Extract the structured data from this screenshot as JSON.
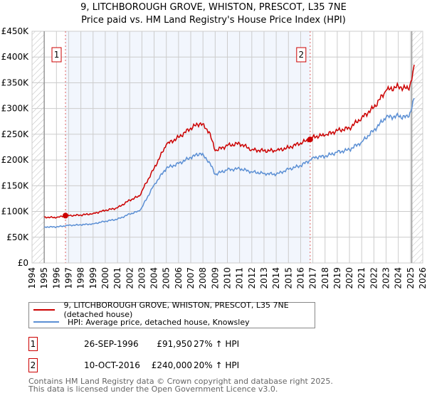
{
  "chart_data": {
    "type": "line",
    "title": "9, LITCHBOROUGH GROVE, WHISTON, PRESCOT, L35 7NE",
    "subtitle": "Price paid vs. HM Land Registry's House Price Index (HPI)",
    "xlim": [
      1994,
      2026
    ],
    "ylim": [
      0,
      450000
    ],
    "x_ticks": [
      "1994",
      "1995",
      "1996",
      "1997",
      "1998",
      "1999",
      "2000",
      "2001",
      "2002",
      "2003",
      "2004",
      "2005",
      "2006",
      "2007",
      "2008",
      "2009",
      "2010",
      "2011",
      "2012",
      "2013",
      "2014",
      "2015",
      "2016",
      "2017",
      "2018",
      "2019",
      "2020",
      "2021",
      "2022",
      "2023",
      "2024",
      "2025",
      "2026"
    ],
    "y_ticks": [
      {
        "value": 0,
        "label": "£0"
      },
      {
        "value": 50000,
        "label": "£50K"
      },
      {
        "value": 100000,
        "label": "£100K"
      },
      {
        "value": 150000,
        "label": "£150K"
      },
      {
        "value": 200000,
        "label": "£200K"
      },
      {
        "value": 250000,
        "label": "£250K"
      },
      {
        "value": 300000,
        "label": "£300K"
      },
      {
        "value": 350000,
        "label": "£350K"
      },
      {
        "value": 400000,
        "label": "£400K"
      },
      {
        "value": 450000,
        "label": "£450K"
      }
    ],
    "grid": true,
    "series": [
      {
        "name": "9, LITCHBOROUGH GROVE, WHISTON, PRESCOT, L35 7NE (detached house)",
        "color": "#cc0000",
        "x": [
          1995,
          1996,
          1996.74,
          1997,
          1998,
          1999,
          2000,
          2001,
          2002,
          2002.8,
          2003,
          2004,
          2005,
          2006,
          2007,
          2007.8,
          2008.5,
          2009,
          2010,
          2011,
          2012,
          2013,
          2014,
          2015,
          2016,
          2016.78,
          2017,
          2018,
          2019,
          2020,
          2021,
          2022,
          2023,
          2024,
          2024.8,
          2025.1,
          2025.3
        ],
        "y": [
          89000,
          88000,
          91950,
          92000,
          93000,
          96000,
          102000,
          107000,
          122000,
          130000,
          140000,
          184000,
          230000,
          244000,
          262000,
          272000,
          255000,
          218000,
          228000,
          232000,
          220000,
          218000,
          218000,
          224000,
          233000,
          240000,
          245000,
          248000,
          257000,
          262000,
          282000,
          302000,
          335000,
          343000,
          338000,
          355000,
          385000
        ]
      },
      {
        "name": "HPI: Average price, detached house, Knowsley",
        "color": "#5b8fd4",
        "x": [
          1995,
          1996,
          1996.74,
          1997,
          1998,
          1999,
          2000,
          2001,
          2002,
          2002.8,
          2003,
          2004,
          2005,
          2006,
          2007,
          2007.8,
          2008.5,
          2009,
          2010,
          2011,
          2012,
          2013,
          2014,
          2015,
          2016,
          2016.78,
          2017,
          2018,
          2019,
          2020,
          2021,
          2022,
          2023,
          2024,
          2024.8,
          2025.1,
          2025.3
        ],
        "y": [
          70000,
          70000,
          72000,
          73000,
          74000,
          76000,
          81000,
          85000,
          95000,
          101000,
          108000,
          152000,
          184000,
          193000,
          205000,
          213000,
          197000,
          172000,
          181000,
          183000,
          177000,
          174000,
          172000,
          182000,
          189000,
          200000,
          205000,
          207000,
          215000,
          220000,
          235000,
          258000,
          283000,
          285000,
          283000,
          300000,
          320000
        ]
      }
    ],
    "sales": [
      {
        "id": "1",
        "date": "26-SEP-1996",
        "x": 1996.74,
        "price": 91950,
        "price_label": "£91,950",
        "hpi_label": "27% ↑ HPI"
      },
      {
        "id": "2",
        "date": "10-OCT-2016",
        "x": 2016.78,
        "price": 240000,
        "price_label": "£240,000",
        "hpi_label": "20% ↑ HPI"
      }
    ],
    "legend_placement": "bottom"
  },
  "footer": {
    "line1": "Contains HM Land Registry data © Crown copyright and database right 2025.",
    "line2": "This data is licensed under the Open Government Licence v3.0."
  }
}
